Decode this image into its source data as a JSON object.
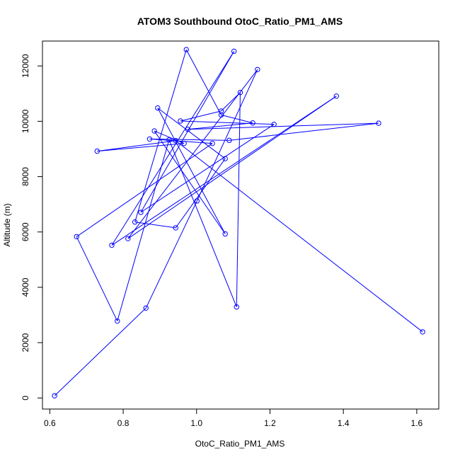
{
  "chart_data": {
    "type": "line",
    "title": "ATOM3 Southbound OtoC_Ratio_PM1_AMS",
    "xlabel": "OtoC_Ratio_PM1_AMS",
    "ylabel": "Altitude (m)",
    "xlim": [
      0.58,
      1.66
    ],
    "ylim": [
      -400,
      12900
    ],
    "x_ticks": [
      0.6,
      0.8,
      1.0,
      1.2,
      1.4,
      1.6
    ],
    "x_tick_labels": [
      "0.6",
      "0.8",
      "1.0",
      "1.2",
      "1.4",
      "1.6"
    ],
    "y_ticks": [
      0,
      2000,
      4000,
      6000,
      8000,
      10000,
      12000
    ],
    "y_tick_labels": [
      "0",
      "2000",
      "4000",
      "6000",
      "8000",
      "10000",
      "12000"
    ],
    "grid": false,
    "series_color": "#0000ff",
    "marker": "open-circle",
    "points": [
      {
        "x": 0.613,
        "y": 80
      },
      {
        "x": 0.862,
        "y": 3250
      },
      {
        "x": 1.001,
        "y": 7120
      },
      {
        "x": 1.166,
        "y": 11870
      },
      {
        "x": 0.813,
        "y": 5760
      },
      {
        "x": 1.381,
        "y": 10910
      },
      {
        "x": 0.769,
        "y": 5520
      },
      {
        "x": 1.102,
        "y": 12530
      },
      {
        "x": 0.848,
        "y": 6710
      },
      {
        "x": 1.211,
        "y": 9890
      },
      {
        "x": 0.956,
        "y": 10010
      },
      {
        "x": 1.067,
        "y": 10370
      },
      {
        "x": 1.119,
        "y": 11040
      },
      {
        "x": 1.109,
        "y": 3290
      },
      {
        "x": 0.925,
        "y": 9330
      },
      {
        "x": 0.784,
        "y": 2780
      },
      {
        "x": 0.673,
        "y": 5830
      },
      {
        "x": 1.043,
        "y": 9200
      },
      {
        "x": 0.872,
        "y": 9360
      },
      {
        "x": 1.089,
        "y": 9310
      },
      {
        "x": 1.496,
        "y": 9930
      },
      {
        "x": 0.976,
        "y": 9710
      },
      {
        "x": 1.153,
        "y": 9940
      },
      {
        "x": 1.067,
        "y": 10230
      },
      {
        "x": 0.972,
        "y": 12590
      },
      {
        "x": 0.832,
        "y": 6360
      },
      {
        "x": 0.943,
        "y": 6150
      },
      {
        "x": 1.078,
        "y": 8650
      },
      {
        "x": 0.894,
        "y": 10480
      },
      {
        "x": 1.078,
        "y": 5930
      },
      {
        "x": 0.885,
        "y": 9650
      },
      {
        "x": 0.966,
        "y": 9200
      },
      {
        "x": 0.729,
        "y": 8920
      },
      {
        "x": 0.943,
        "y": 9300
      },
      {
        "x": 1.616,
        "y": 2390
      }
    ]
  }
}
